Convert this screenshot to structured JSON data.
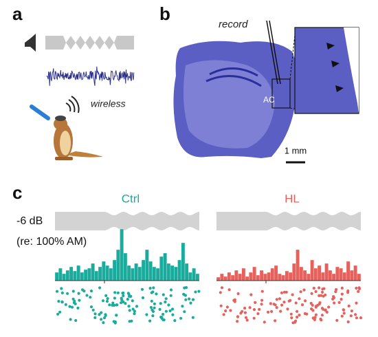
{
  "panel_a": {
    "label": "a",
    "wireless": "wireless"
  },
  "panel_b": {
    "label": "b",
    "record": "record",
    "region": "AC",
    "scale_bar": "1 mm"
  },
  "panel_c": {
    "label": "c",
    "level": "-6 dB",
    "reference": "(re: 100% AM)",
    "groups": [
      {
        "name": "Ctrl",
        "color": "#1aab9c",
        "histogram": [
          12,
          18,
          10,
          15,
          20,
          14,
          22,
          12,
          16,
          18,
          25,
          14,
          20,
          28,
          22,
          18,
          30,
          45,
          75,
          40,
          22,
          18,
          25,
          20,
          30,
          45,
          28,
          20,
          18,
          35,
          40,
          25,
          22,
          20,
          30,
          55,
          25,
          12,
          18,
          10
        ]
      },
      {
        "name": "HL",
        "color": "#e8605c",
        "histogram": [
          5,
          10,
          6,
          12,
          8,
          15,
          10,
          18,
          6,
          12,
          20,
          8,
          15,
          10,
          12,
          18,
          22,
          10,
          8,
          14,
          12,
          25,
          45,
          20,
          15,
          10,
          30,
          18,
          22,
          12,
          25,
          15,
          10,
          20,
          18,
          12,
          28,
          15,
          22,
          10
        ]
      }
    ]
  }
}
